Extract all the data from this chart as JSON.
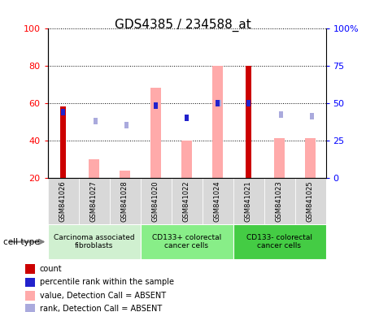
{
  "title": "GDS4385 / 234588_at",
  "samples": [
    "GSM841026",
    "GSM841027",
    "GSM841028",
    "GSM841020",
    "GSM841022",
    "GSM841024",
    "GSM841021",
    "GSM841023",
    "GSM841025"
  ],
  "groups": [
    {
      "label": "Carcinoma associated\nfibroblasts",
      "color": "#ccf0cc",
      "start": 0,
      "end": 3
    },
    {
      "label": "CD133+ colorectal\ncancer cells",
      "color": "#88ee88",
      "start": 3,
      "end": 6
    },
    {
      "label": "CD133- colorectal\ncancer cells",
      "color": "#44cc44",
      "start": 6,
      "end": 9
    }
  ],
  "count_vals": [
    58,
    null,
    null,
    null,
    null,
    null,
    80,
    null,
    null
  ],
  "percentile_rank_vals": [
    44,
    null,
    null,
    48,
    40,
    50,
    50,
    null,
    null
  ],
  "value_absent_vals": [
    null,
    30,
    24,
    68,
    40,
    80,
    null,
    41,
    41
  ],
  "rank_absent_vals": [
    null,
    38,
    35,
    null,
    null,
    50,
    null,
    42,
    41
  ],
  "ylim_left": [
    20,
    100
  ],
  "ylim_right": [
    0,
    100
  ],
  "yticks_left": [
    20,
    40,
    60,
    80,
    100
  ],
  "yticks_right": [
    0,
    25,
    50,
    75,
    100
  ],
  "ytick_labels_right": [
    "0",
    "25",
    "50",
    "75",
    "100%"
  ],
  "colors": {
    "count": "#cc0000",
    "percentile_rank": "#2222cc",
    "value_absent": "#ffaaaa",
    "rank_absent": "#aaaadd"
  }
}
